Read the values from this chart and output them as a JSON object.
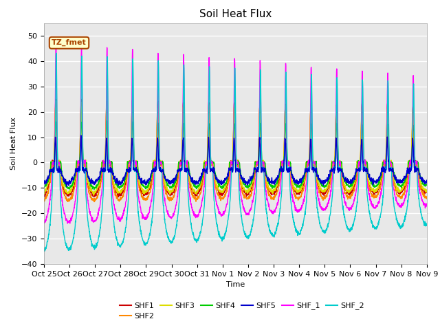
{
  "title": "Soil Heat Flux",
  "ylabel": "Soil Heat Flux",
  "xlabel": "Time",
  "ylim": [
    -40,
    55
  ],
  "yticks": [
    -40,
    -30,
    -20,
    -10,
    0,
    10,
    20,
    30,
    40,
    50
  ],
  "xtick_labels": [
    "Oct 25",
    "Oct 26",
    "Oct 27",
    "Oct 28",
    "Oct 29",
    "Oct 30",
    "Oct 31",
    "Nov 1",
    "Nov 2",
    "Nov 3",
    "Nov 4",
    "Nov 5",
    "Nov 6",
    "Nov 7",
    "Nov 8",
    "Nov 9"
  ],
  "series_colors": {
    "SHF1": "#cc0000",
    "SHF2": "#ff8800",
    "SHF3": "#dddd00",
    "SHF4": "#00cc00",
    "SHF5": "#0000cc",
    "SHF_1": "#ff00ff",
    "SHF_2": "#00cccc"
  },
  "annotation_text": "TZ_fmet",
  "annotation_color": "#aa4400",
  "annotation_bg": "#ffffcc",
  "plot_bg": "#e8e8e8",
  "fig_bg": "#ffffff",
  "grid_color": "#ffffff",
  "title_fontsize": 11,
  "axis_label_fontsize": 8,
  "tick_fontsize": 8,
  "legend_fontsize": 8,
  "linewidth": 1.0
}
